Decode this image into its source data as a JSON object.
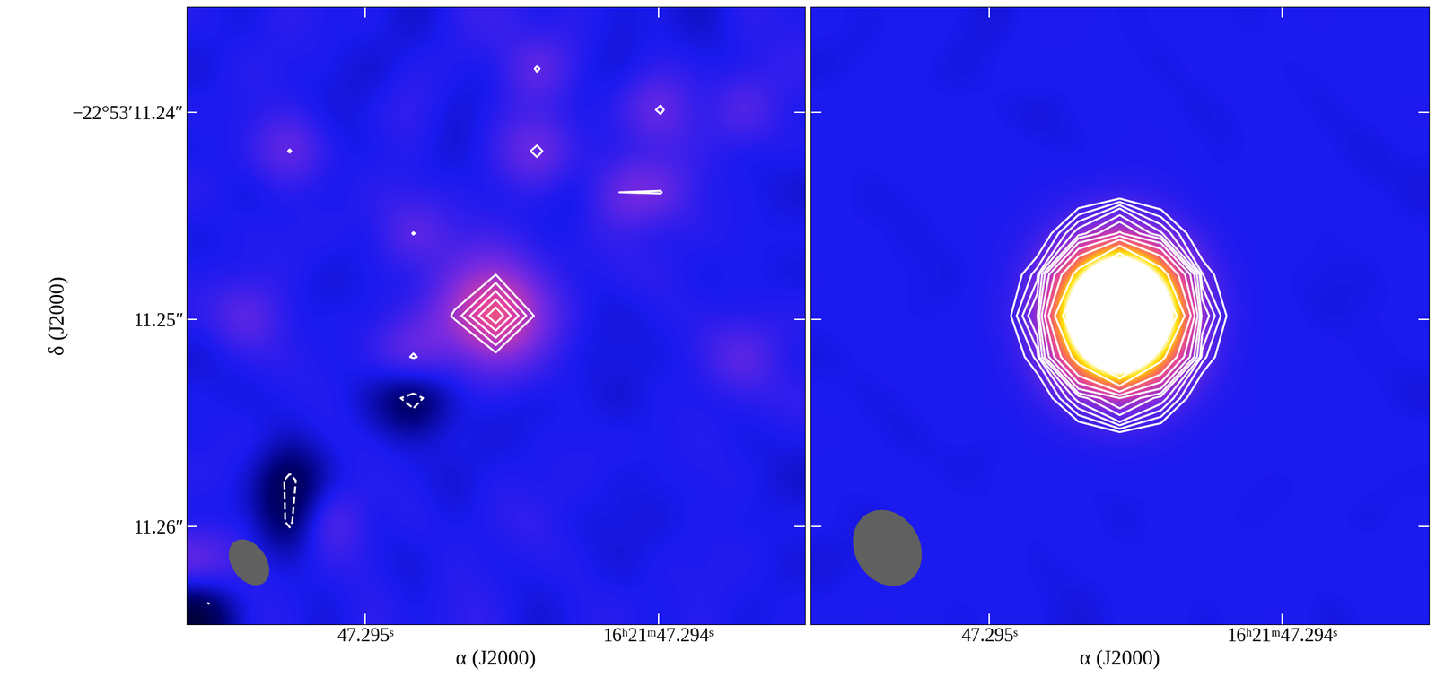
{
  "chart_data": [
    {
      "type": "heatmap",
      "x_label": "α (J2000)",
      "y_label": "δ (J2000)",
      "xlim": [
        47.29561,
        47.2935
      ],
      "ylim": [
        11.26475,
        11.2349
      ],
      "xticks": [
        {
          "value": 47.295,
          "label": "47.295ˢ"
        },
        {
          "value": 47.294,
          "label": "16ʰ21ᵐ47.294ˢ"
        }
      ],
      "yticks": [
        {
          "value": 11.24,
          "label": "−22°53′11.24″"
        },
        {
          "value": 11.25,
          "label": "11.25″"
        },
        {
          "value": 11.26,
          "label": "11.26″"
        }
      ],
      "color_range": [
        -4,
        9
      ],
      "contour_levels": [
        -3,
        3,
        4,
        5,
        6,
        7
      ],
      "beam": {
        "major_mas": 2.44,
        "minor_mas": 1.66,
        "pa_deg": 35
      },
      "cells": [
        [
          0.3,
          -0.5,
          0.8,
          -0.2,
          0.5,
          -0.9,
          0.4,
          1.1,
          -0.3,
          0.6,
          -0.4,
          0.2,
          -1.0,
          0.7,
          0.1
        ],
        [
          -0.6,
          0.9,
          -0.3,
          0.4,
          -1.1,
          0.6,
          0.2,
          -0.5,
          3.2,
          0.1,
          -0.7,
          0.5,
          0.3,
          -0.4,
          0.8
        ],
        [
          0.4,
          -0.2,
          0.6,
          -0.8,
          0.3,
          0.9,
          -0.6,
          0.2,
          0.5,
          -0.3,
          0.7,
          3.3,
          -0.5,
          3.0,
          -0.2
        ],
        [
          -0.3,
          0.5,
          3.1,
          0.2,
          -0.4,
          0.6,
          -0.9,
          0.8,
          3.4,
          0.4,
          -0.2,
          0.3,
          0.9,
          -0.6,
          0.4
        ],
        [
          0.7,
          -0.8,
          0.3,
          -0.5,
          0.9,
          -0.2,
          0.5,
          -0.4,
          0.6,
          -1.0,
          3.0,
          3.1,
          -0.3,
          0.5,
          -0.7
        ],
        [
          -0.4,
          0.6,
          -0.1,
          0.8,
          -0.6,
          3.1,
          0.2,
          0.9,
          -0.5,
          0.3,
          0.6,
          -0.4,
          0.7,
          -0.2,
          0.3
        ],
        [
          0.2,
          -0.3,
          0.7,
          -0.9,
          0.4,
          -0.5,
          1.8,
          3.0,
          1.2,
          -0.3,
          0.5,
          0.8,
          -0.6,
          0.4,
          -0.5
        ],
        [
          0.5,
          3.0,
          -0.4,
          0.3,
          -0.2,
          0.8,
          3.2,
          8.0,
          2.6,
          0.4,
          -0.8,
          0.2,
          0.5,
          -0.3,
          0.6
        ],
        [
          -0.7,
          0.4,
          0.6,
          -0.3,
          0.7,
          3.2,
          0.9,
          2.4,
          1.5,
          -0.6,
          0.3,
          -0.5,
          0.4,
          3.0,
          -0.2
        ],
        [
          0.3,
          -0.6,
          0.2,
          0.5,
          -1.2,
          -3.8,
          -0.4,
          0.3,
          -0.7,
          0.5,
          -1.1,
          0.6,
          -0.3,
          0.2,
          0.7
        ],
        [
          -0.2,
          0.8,
          -0.9,
          0.4,
          0.3,
          -0.6,
          0.5,
          -0.8,
          0.4,
          -0.2,
          0.6,
          -0.4,
          0.8,
          -0.5,
          0.1
        ],
        [
          0.6,
          -0.4,
          -3.4,
          -0.7,
          0.5,
          0.2,
          -0.9,
          0.6,
          -0.3,
          0.7,
          -0.5,
          0.3,
          -0.2,
          0.6,
          -0.8
        ],
        [
          -0.5,
          0.3,
          -3.4,
          3.0,
          -0.6,
          0.8,
          -0.3,
          0.4,
          0.9,
          -0.6,
          0.2,
          -0.7,
          0.5,
          -0.4,
          0.3
        ],
        [
          3.0,
          0.4,
          -0.5,
          0.6,
          0.2,
          -0.8,
          0.7,
          -0.4,
          0.3,
          0.5,
          -0.9,
          0.6,
          -0.2,
          0.7,
          -0.5
        ],
        [
          -3.2,
          0.5,
          0.3,
          -0.6,
          0.8,
          -0.2,
          0.4,
          0.6,
          -0.7,
          0.2,
          0.5,
          -0.3,
          0.6,
          -0.4,
          0.2
        ]
      ]
    },
    {
      "type": "heatmap",
      "x_label": "α (J2000)",
      "tick_labels": "x",
      "xlim": [
        47.29561,
        47.2935
      ],
      "ylim": [
        11.26475,
        11.2349
      ],
      "xticks": [
        {
          "value": 47.295,
          "label": "47.295ˢ"
        },
        {
          "value": 47.294,
          "label": "16ʰ21ᵐ47.294ˢ"
        }
      ],
      "yticks": [
        11.24,
        11.25,
        11.26
      ],
      "color_range": [
        -4,
        40
      ],
      "contour_levels": [
        3,
        4,
        5,
        6,
        8,
        10,
        13,
        17,
        22,
        30,
        40,
        55,
        75,
        100
      ],
      "beam": {
        "major_mas": 3.83,
        "minor_mas": 3.14,
        "pa_deg": 30
      },
      "cells": [
        [
          0.2,
          -0.3,
          0.4,
          0.1,
          -0.5,
          0.3,
          0.6,
          -0.2,
          0.1,
          0.4,
          -0.3,
          0.2,
          0.5,
          -0.1,
          0.3
        ],
        [
          -0.4,
          0.1,
          0.3,
          -0.6,
          0.2,
          0.5,
          -0.1,
          0.3,
          -0.4,
          0.2,
          0.6,
          -0.3,
          0.1,
          0.4,
          -0.2
        ],
        [
          0.3,
          0.5,
          -0.2,
          0.4,
          -0.1,
          -0.6,
          0.2,
          0.4,
          0.3,
          -0.5,
          0.1,
          0.3,
          -0.4,
          0.2,
          0.6
        ],
        [
          -0.1,
          0.2,
          0.6,
          -0.3,
          0.4,
          0.1,
          -0.4,
          0.2,
          0.5,
          0.1,
          -0.2,
          0.4,
          0.2,
          -0.6,
          0.1
        ],
        [
          0.4,
          -0.5,
          0.1,
          0.3,
          -0.2,
          0.5,
          0.6,
          1.1,
          0.7,
          -0.3,
          0.4,
          -0.1,
          0.3,
          0.2,
          -0.4
        ],
        [
          -0.2,
          0.3,
          -0.4,
          0.2,
          0.6,
          1.0,
          6.8,
          13.5,
          6.2,
          1.1,
          -0.2,
          0.5,
          -0.3,
          0.4,
          0.1
        ],
        [
          0.5,
          -0.1,
          0.2,
          -0.5,
          0.3,
          4.6,
          34.0,
          69.0,
          35.0,
          4.1,
          0.3,
          -0.2,
          0.1,
          -0.4,
          0.3
        ],
        [
          0.1,
          0.4,
          -0.3,
          0.2,
          0.4,
          7.6,
          60.0,
          120.0,
          61.0,
          7.2,
          0.1,
          0.3,
          -0.5,
          0.2,
          -0.1
        ],
        [
          -0.3,
          0.2,
          0.5,
          -0.1,
          -0.2,
          4.4,
          35.0,
          70.0,
          33.0,
          4.5,
          -0.3,
          0.2,
          0.4,
          -0.3,
          0.2
        ],
        [
          0.2,
          -0.4,
          0.1,
          0.6,
          0.3,
          0.9,
          6.6,
          13.0,
          6.9,
          0.7,
          0.5,
          -0.1,
          0.2,
          0.3,
          -0.5
        ],
        [
          0.6,
          0.1,
          -0.5,
          0.2,
          -0.3,
          0.2,
          0.3,
          0.9,
          0.5,
          -0.2,
          0.1,
          0.6,
          -0.3,
          0.1,
          0.4
        ],
        [
          -0.2,
          0.3,
          0.4,
          -0.4,
          0.1,
          0.5,
          -0.3,
          0.2,
          -0.1,
          0.4,
          0.2,
          -0.4,
          0.5,
          0.2,
          -0.3
        ],
        [
          0.3,
          -0.6,
          0.2,
          0.5,
          -0.2,
          0.1,
          0.4,
          -0.5,
          0.3,
          0.1,
          -0.3,
          0.2,
          0.1,
          -0.5,
          0.4
        ],
        [
          -0.5,
          0.2,
          -0.1,
          0.3,
          0.6,
          -0.4,
          0.2,
          0.3,
          -0.2,
          0.5,
          0.4,
          -0.1,
          0.3,
          0.6,
          -0.2
        ],
        [
          0.1,
          0.4,
          0.3,
          -0.2,
          0.1,
          0.2,
          -0.5,
          0.1,
          0.4,
          -0.3,
          0.2,
          0.5,
          -0.4,
          0.1,
          0.3
        ]
      ]
    }
  ]
}
